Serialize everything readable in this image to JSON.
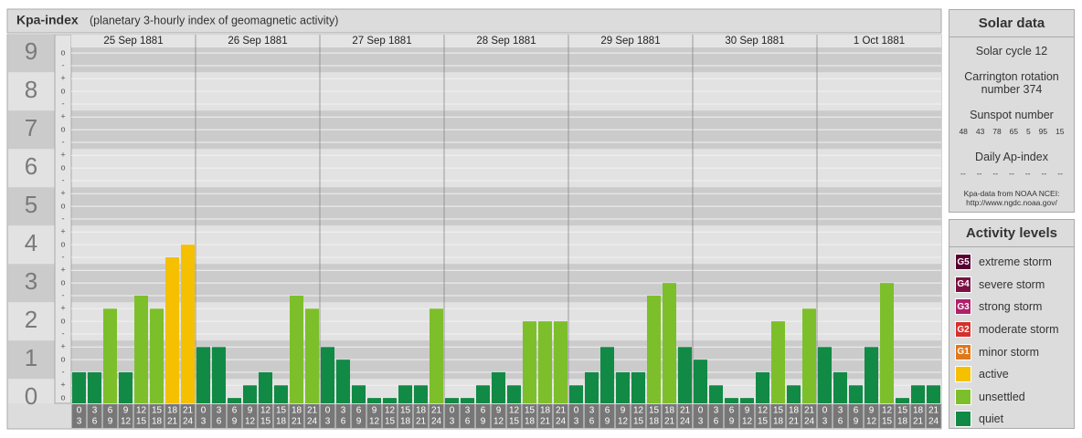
{
  "chart_data": {
    "type": "bar",
    "title": "Kpa-index",
    "subtitle": "(planetary 3-hourly index of geomagnetic activity)",
    "days": [
      "25 Sep 1881",
      "26 Sep 1881",
      "27 Sep 1881",
      "28 Sep 1881",
      "29 Sep 1881",
      "30 Sep 1881",
      "1 Oct 1881"
    ],
    "hour_from": [
      0,
      3,
      6,
      9,
      12,
      15,
      18,
      21
    ],
    "hour_to": [
      3,
      6,
      9,
      12,
      15,
      18,
      21,
      24
    ],
    "values": [
      0.67,
      0.67,
      2.33,
      0.67,
      2.67,
      2.33,
      3.67,
      4,
      1.33,
      1.33,
      0,
      0.33,
      0.67,
      0.33,
      2.67,
      2.33,
      1.33,
      1,
      0.33,
      0,
      0,
      0.33,
      0.33,
      2.33,
      0,
      0,
      0.33,
      0.67,
      0.33,
      2,
      2,
      2,
      0.33,
      0.67,
      1.33,
      0.67,
      0.67,
      2.67,
      3,
      1.33,
      1,
      0.33,
      0,
      0,
      0.67,
      2,
      0.33,
      2.33,
      1.33,
      0.67,
      0.33,
      1.33,
      3,
      0,
      0.33,
      0.33
    ],
    "colors": [
      "#118a45",
      "#118a45",
      "#7dbf2a",
      "#118a45",
      "#7dbf2a",
      "#7dbf2a",
      "#f5c000",
      "#f5c000",
      "#118a45",
      "#118a45",
      "#118a45",
      "#118a45",
      "#118a45",
      "#118a45",
      "#7dbf2a",
      "#7dbf2a",
      "#118a45",
      "#118a45",
      "#118a45",
      "#118a45",
      "#118a45",
      "#118a45",
      "#118a45",
      "#7dbf2a",
      "#118a45",
      "#118a45",
      "#118a45",
      "#118a45",
      "#118a45",
      "#7dbf2a",
      "#7dbf2a",
      "#7dbf2a",
      "#118a45",
      "#118a45",
      "#118a45",
      "#118a45",
      "#118a45",
      "#7dbf2a",
      "#7dbf2a",
      "#118a45",
      "#118a45",
      "#118a45",
      "#118a45",
      "#118a45",
      "#118a45",
      "#7dbf2a",
      "#118a45",
      "#7dbf2a",
      "#118a45",
      "#118a45",
      "#118a45",
      "#118a45",
      "#7dbf2a",
      "#118a45",
      "#118a45",
      "#118a45"
    ],
    "ylim": [
      -0.14,
      9.48
    ],
    "yticks": [
      0,
      1,
      2,
      3,
      4,
      5,
      6,
      7,
      8,
      9
    ],
    "minor_ticks": [
      {
        "value": 0,
        "label": "o"
      },
      {
        "value": 0.33,
        "label": "+"
      },
      {
        "value": 0.67,
        "label": "-"
      },
      {
        "value": 1,
        "label": "o"
      },
      {
        "value": 1.33,
        "label": "+"
      },
      {
        "value": 1.67,
        "label": "-"
      },
      {
        "value": 2,
        "label": "o"
      },
      {
        "value": 2.33,
        "label": "+"
      },
      {
        "value": 2.67,
        "label": "-"
      },
      {
        "value": 3,
        "label": "o"
      },
      {
        "value": 3.33,
        "label": "+"
      },
      {
        "value": 3.67,
        "label": "-"
      },
      {
        "value": 4,
        "label": "o"
      },
      {
        "value": 4.33,
        "label": "+"
      },
      {
        "value": 4.67,
        "label": "-"
      },
      {
        "value": 5,
        "label": "o"
      },
      {
        "value": 5.33,
        "label": "+"
      },
      {
        "value": 5.67,
        "label": "-"
      },
      {
        "value": 6,
        "label": "o"
      },
      {
        "value": 6.33,
        "label": "+"
      },
      {
        "value": 6.67,
        "label": "-"
      },
      {
        "value": 7,
        "label": "o"
      },
      {
        "value": 7.33,
        "label": "+"
      },
      {
        "value": 7.67,
        "label": "-"
      },
      {
        "value": 8,
        "label": "o"
      },
      {
        "value": 8.33,
        "label": "+"
      },
      {
        "value": 8.67,
        "label": "-"
      },
      {
        "value": 9,
        "label": "o"
      }
    ],
    "grid": true
  },
  "solar_data": {
    "title": "Solar data",
    "cycle": "Solar cycle 12",
    "carrington": "Carrington rotation number 374",
    "sunspot_title": "Sunspot number",
    "sunspots": [
      48,
      43,
      78,
      65,
      5,
      95,
      15
    ],
    "ap_title": "Daily Ap-index",
    "ap": [
      "--",
      "--",
      "--",
      "--",
      "--",
      "--",
      "--"
    ],
    "source": "Kpa-data from NOAA NCEI: http://www.ngdc.noaa.gov/"
  },
  "activity_levels": {
    "title": "Activity levels",
    "items": [
      {
        "badge": "G5",
        "label": "extreme storm",
        "color": "#560030"
      },
      {
        "badge": "G4",
        "label": "severe storm",
        "color": "#7a1142"
      },
      {
        "badge": "G3",
        "label": "strong storm",
        "color": "#b2206c"
      },
      {
        "badge": "G2",
        "label": "moderate storm",
        "color": "#d6302b"
      },
      {
        "badge": "G1",
        "label": "minor storm",
        "color": "#e0781a"
      },
      {
        "label": "active",
        "color": "#f5c000"
      },
      {
        "label": "unsettled",
        "color": "#7dbf2a"
      },
      {
        "label": "quiet",
        "color": "#118a45"
      }
    ]
  }
}
